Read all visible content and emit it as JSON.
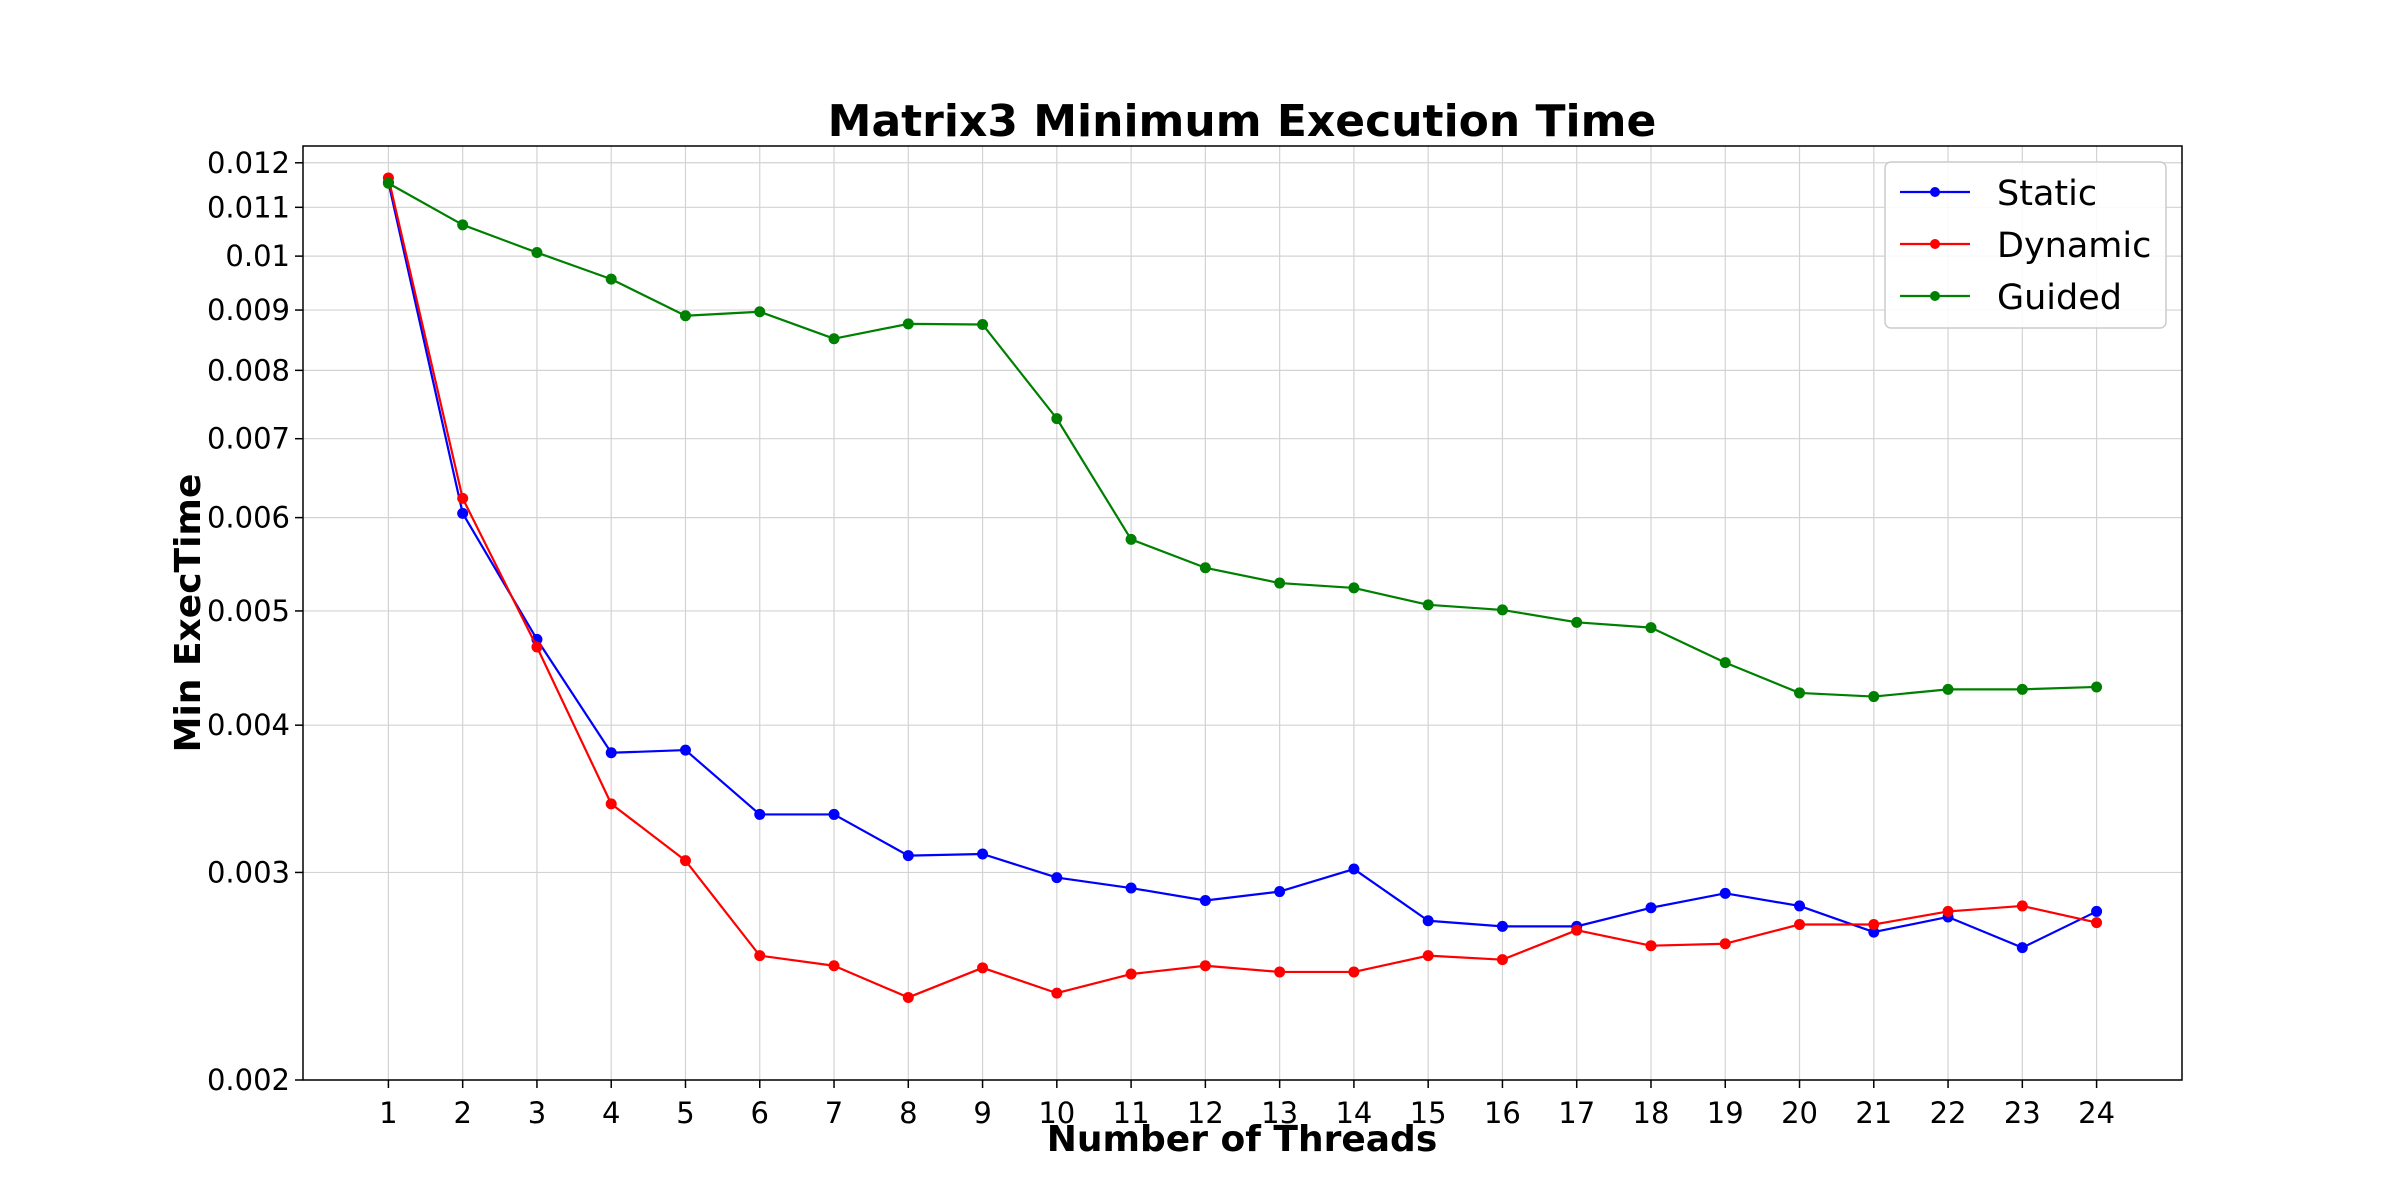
{
  "chart_data": {
    "type": "line",
    "title": "Matrix3 Minimum Execution Time",
    "xlabel": "Number of Threads",
    "ylabel": "Min ExecTime",
    "x": [
      1,
      2,
      3,
      4,
      5,
      6,
      7,
      8,
      9,
      10,
      11,
      12,
      13,
      14,
      15,
      16,
      17,
      18,
      19,
      20,
      21,
      22,
      23,
      24
    ],
    "xticks": [
      "1",
      "2",
      "3",
      "4",
      "5",
      "6",
      "7",
      "8",
      "9",
      "10",
      "11",
      "12",
      "13",
      "14",
      "15",
      "16",
      "17",
      "18",
      "19",
      "20",
      "21",
      "22",
      "23",
      "24"
    ],
    "xlim": [
      -0.15,
      25.15
    ],
    "y_scale": "log",
    "ylim": [
      0.002,
      0.0124
    ],
    "yticks": [
      0.002,
      0.003,
      0.004,
      0.005,
      0.006,
      0.007,
      0.008,
      0.009,
      0.01,
      0.011,
      0.012
    ],
    "ytick_labels": [
      "0.002",
      "0.003",
      "0.004",
      "0.005",
      "0.006",
      "0.007",
      "0.008",
      "0.009",
      "0.01",
      "0.011",
      "0.012"
    ],
    "grid": true,
    "legend_position": "top-right",
    "series": [
      {
        "name": "Static",
        "color": "#0000ff",
        "values": [
          0.01155,
          0.00605,
          0.00473,
          0.00379,
          0.00381,
          0.00336,
          0.00336,
          0.0031,
          0.00311,
          0.00297,
          0.00291,
          0.00284,
          0.00289,
          0.00302,
          0.00273,
          0.0027,
          0.0027,
          0.0028,
          0.00288,
          0.00281,
          0.00267,
          0.00275,
          0.00259,
          0.00278
        ]
      },
      {
        "name": "Dynamic",
        "color": "#ff0000",
        "values": [
          0.01165,
          0.00623,
          0.00466,
          0.00343,
          0.00307,
          0.00255,
          0.0025,
          0.00235,
          0.00249,
          0.00237,
          0.00246,
          0.0025,
          0.00247,
          0.00247,
          0.00255,
          0.00253,
          0.00268,
          0.0026,
          0.00261,
          0.00271,
          0.00271,
          0.00278,
          0.00281,
          0.00272
        ]
      },
      {
        "name": "Guided",
        "color": "#008000",
        "values": [
          0.01153,
          0.01063,
          0.01007,
          0.00956,
          0.0089,
          0.00897,
          0.00851,
          0.00876,
          0.00875,
          0.00728,
          0.00575,
          0.00544,
          0.00528,
          0.00523,
          0.00506,
          0.00501,
          0.00489,
          0.00484,
          0.00452,
          0.00426,
          0.00423,
          0.00429,
          0.00429,
          0.00431
        ]
      }
    ]
  }
}
